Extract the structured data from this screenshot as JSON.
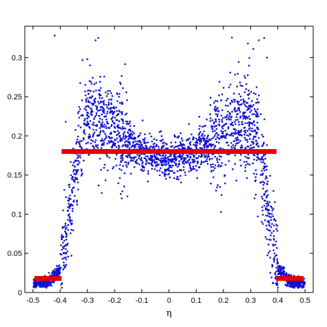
{
  "chart_data": {
    "type": "scatter",
    "title": "",
    "xlabel": "η",
    "ylabel": "",
    "xlim": [
      -0.53,
      0.53
    ],
    "ylim": [
      0,
      0.34
    ],
    "grid": false,
    "x_ticks": [
      -0.5,
      -0.4,
      -0.3,
      -0.2,
      -0.1,
      0,
      0.1,
      0.2,
      0.3,
      0.4,
      0.5
    ],
    "x_tick_labels": [
      "-0.5",
      "-0.4",
      "-0.3",
      "-0.2",
      "-0.1",
      "0",
      "0.1",
      "0.2",
      "0.3",
      "0.4",
      "0.5"
    ],
    "y_ticks": [
      0,
      0.05,
      0.1,
      0.15,
      0.2,
      0.25,
      0.3
    ],
    "y_tick_labels": [
      "0",
      "0.05",
      "0.1",
      "0.15",
      "0.2",
      "0.25",
      "0.3"
    ],
    "scatter_color": "#1010d0",
    "segment_color": "#e00000",
    "segments": [
      {
        "x": [
          -0.495,
          -0.395
        ],
        "y": [
          0.018,
          0.018
        ]
      },
      {
        "x": [
          -0.395,
          0.395
        ],
        "y": [
          0.18,
          0.18
        ]
      },
      {
        "x": [
          0.395,
          0.495
        ],
        "y": [
          0.018,
          0.018
        ]
      }
    ],
    "scatter_envelope": {
      "x": [
        -0.5,
        -0.45,
        -0.4,
        -0.37,
        -0.35,
        -0.32,
        -0.3,
        -0.25,
        -0.2,
        -0.15,
        -0.1,
        -0.05,
        0,
        0.05,
        0.1,
        0.15,
        0.2,
        0.25,
        0.3,
        0.32,
        0.35,
        0.37,
        0.4,
        0.45,
        0.5
      ],
      "y": [
        0.012,
        0.012,
        0.03,
        0.09,
        0.14,
        0.2,
        0.22,
        0.215,
        0.205,
        0.19,
        0.18,
        0.175,
        0.17,
        0.175,
        0.18,
        0.19,
        0.205,
        0.215,
        0.22,
        0.2,
        0.14,
        0.09,
        0.03,
        0.012,
        0.012
      ]
    },
    "outliers": [
      {
        "x": -0.42,
        "y": 0.328
      },
      {
        "x": -0.3,
        "y": 0.298
      },
      {
        "x": -0.29,
        "y": 0.29
      },
      {
        "x": -0.27,
        "y": 0.322
      },
      {
        "x": -0.26,
        "y": 0.325
      },
      {
        "x": -0.18,
        "y": 0.268
      },
      {
        "x": 0.02,
        "y": 0.201
      },
      {
        "x": 0.29,
        "y": 0.318
      },
      {
        "x": 0.31,
        "y": 0.311
      },
      {
        "x": 0.33,
        "y": 0.322
      },
      {
        "x": 0.35,
        "y": 0.325
      },
      {
        "x": -0.38,
        "y": 0.218
      },
      {
        "x": 0.36,
        "y": 0.3
      }
    ]
  }
}
